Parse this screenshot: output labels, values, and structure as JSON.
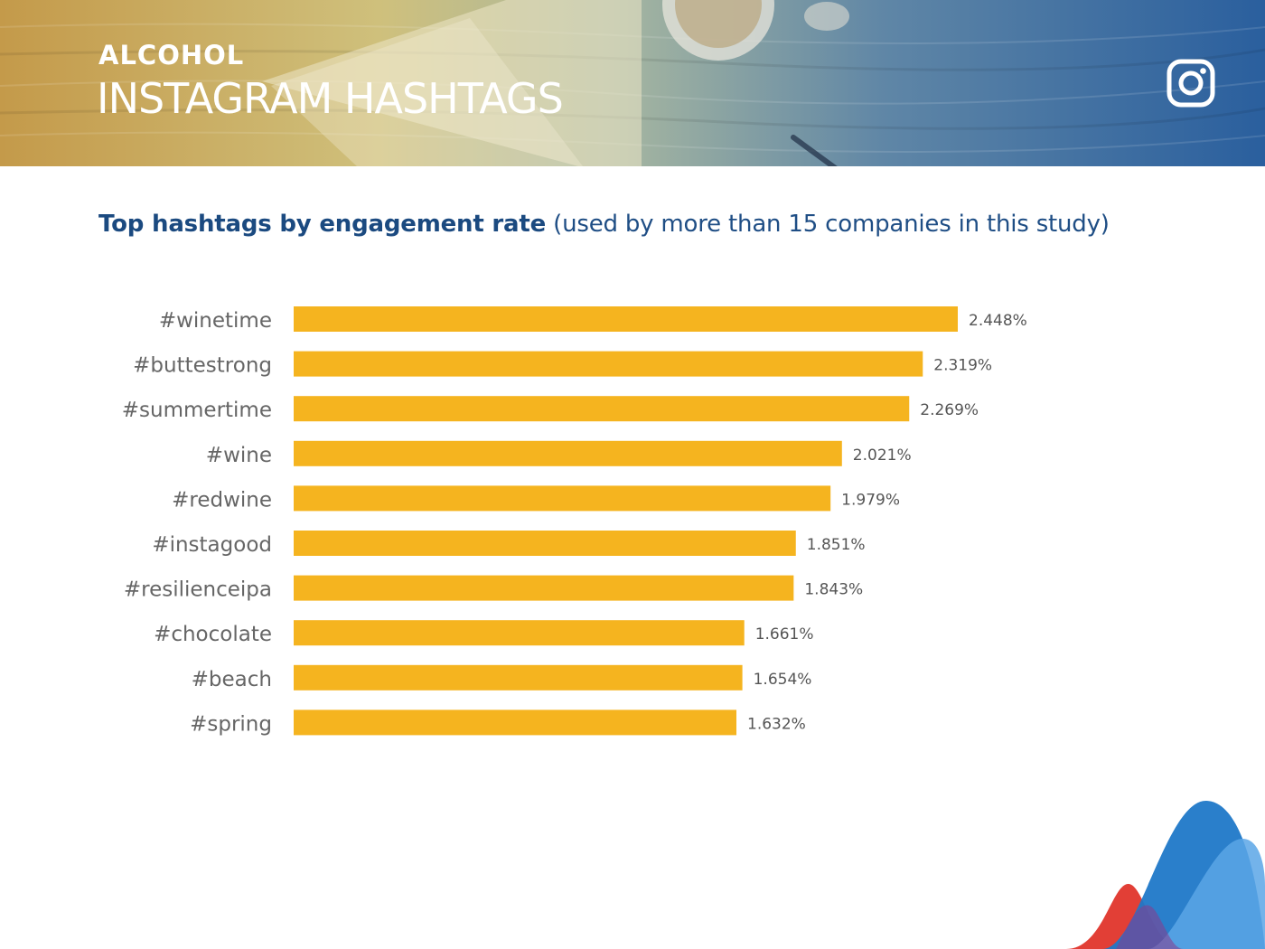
{
  "header": {
    "category": "ALCOHOL",
    "title": "INSTAGRAM HASHTAGS",
    "icon": "instagram-icon"
  },
  "subtitle": {
    "bold": "Top hashtags by engagement rate",
    "normal": "(used by more than 15 companies in this study)"
  },
  "colors": {
    "bar": "#f5b41f",
    "label": "#666666",
    "value": "#555555",
    "title": "#1b4a80"
  },
  "chart_data": {
    "type": "bar",
    "orientation": "horizontal",
    "title": "Top hashtags by engagement rate (used by more than 15 companies in this study)",
    "categories": [
      "#winetime",
      "#buttestrong",
      "#summertime",
      "#wine",
      "#redwine",
      "#instagood",
      "#resilienceipa",
      "#chocolate",
      "#beach",
      "#spring"
    ],
    "values": [
      2.448,
      2.319,
      2.269,
      2.021,
      1.979,
      1.851,
      1.843,
      1.661,
      1.654,
      1.632
    ],
    "value_labels": [
      "2.448%",
      "2.319%",
      "2.269%",
      "2.021%",
      "1.979%",
      "1.851%",
      "1.843%",
      "1.661%",
      "1.654%",
      "1.632%"
    ],
    "xlabel": "",
    "ylabel": "",
    "xlim": [
      0,
      2.448
    ],
    "unit": "%",
    "grid": false
  }
}
